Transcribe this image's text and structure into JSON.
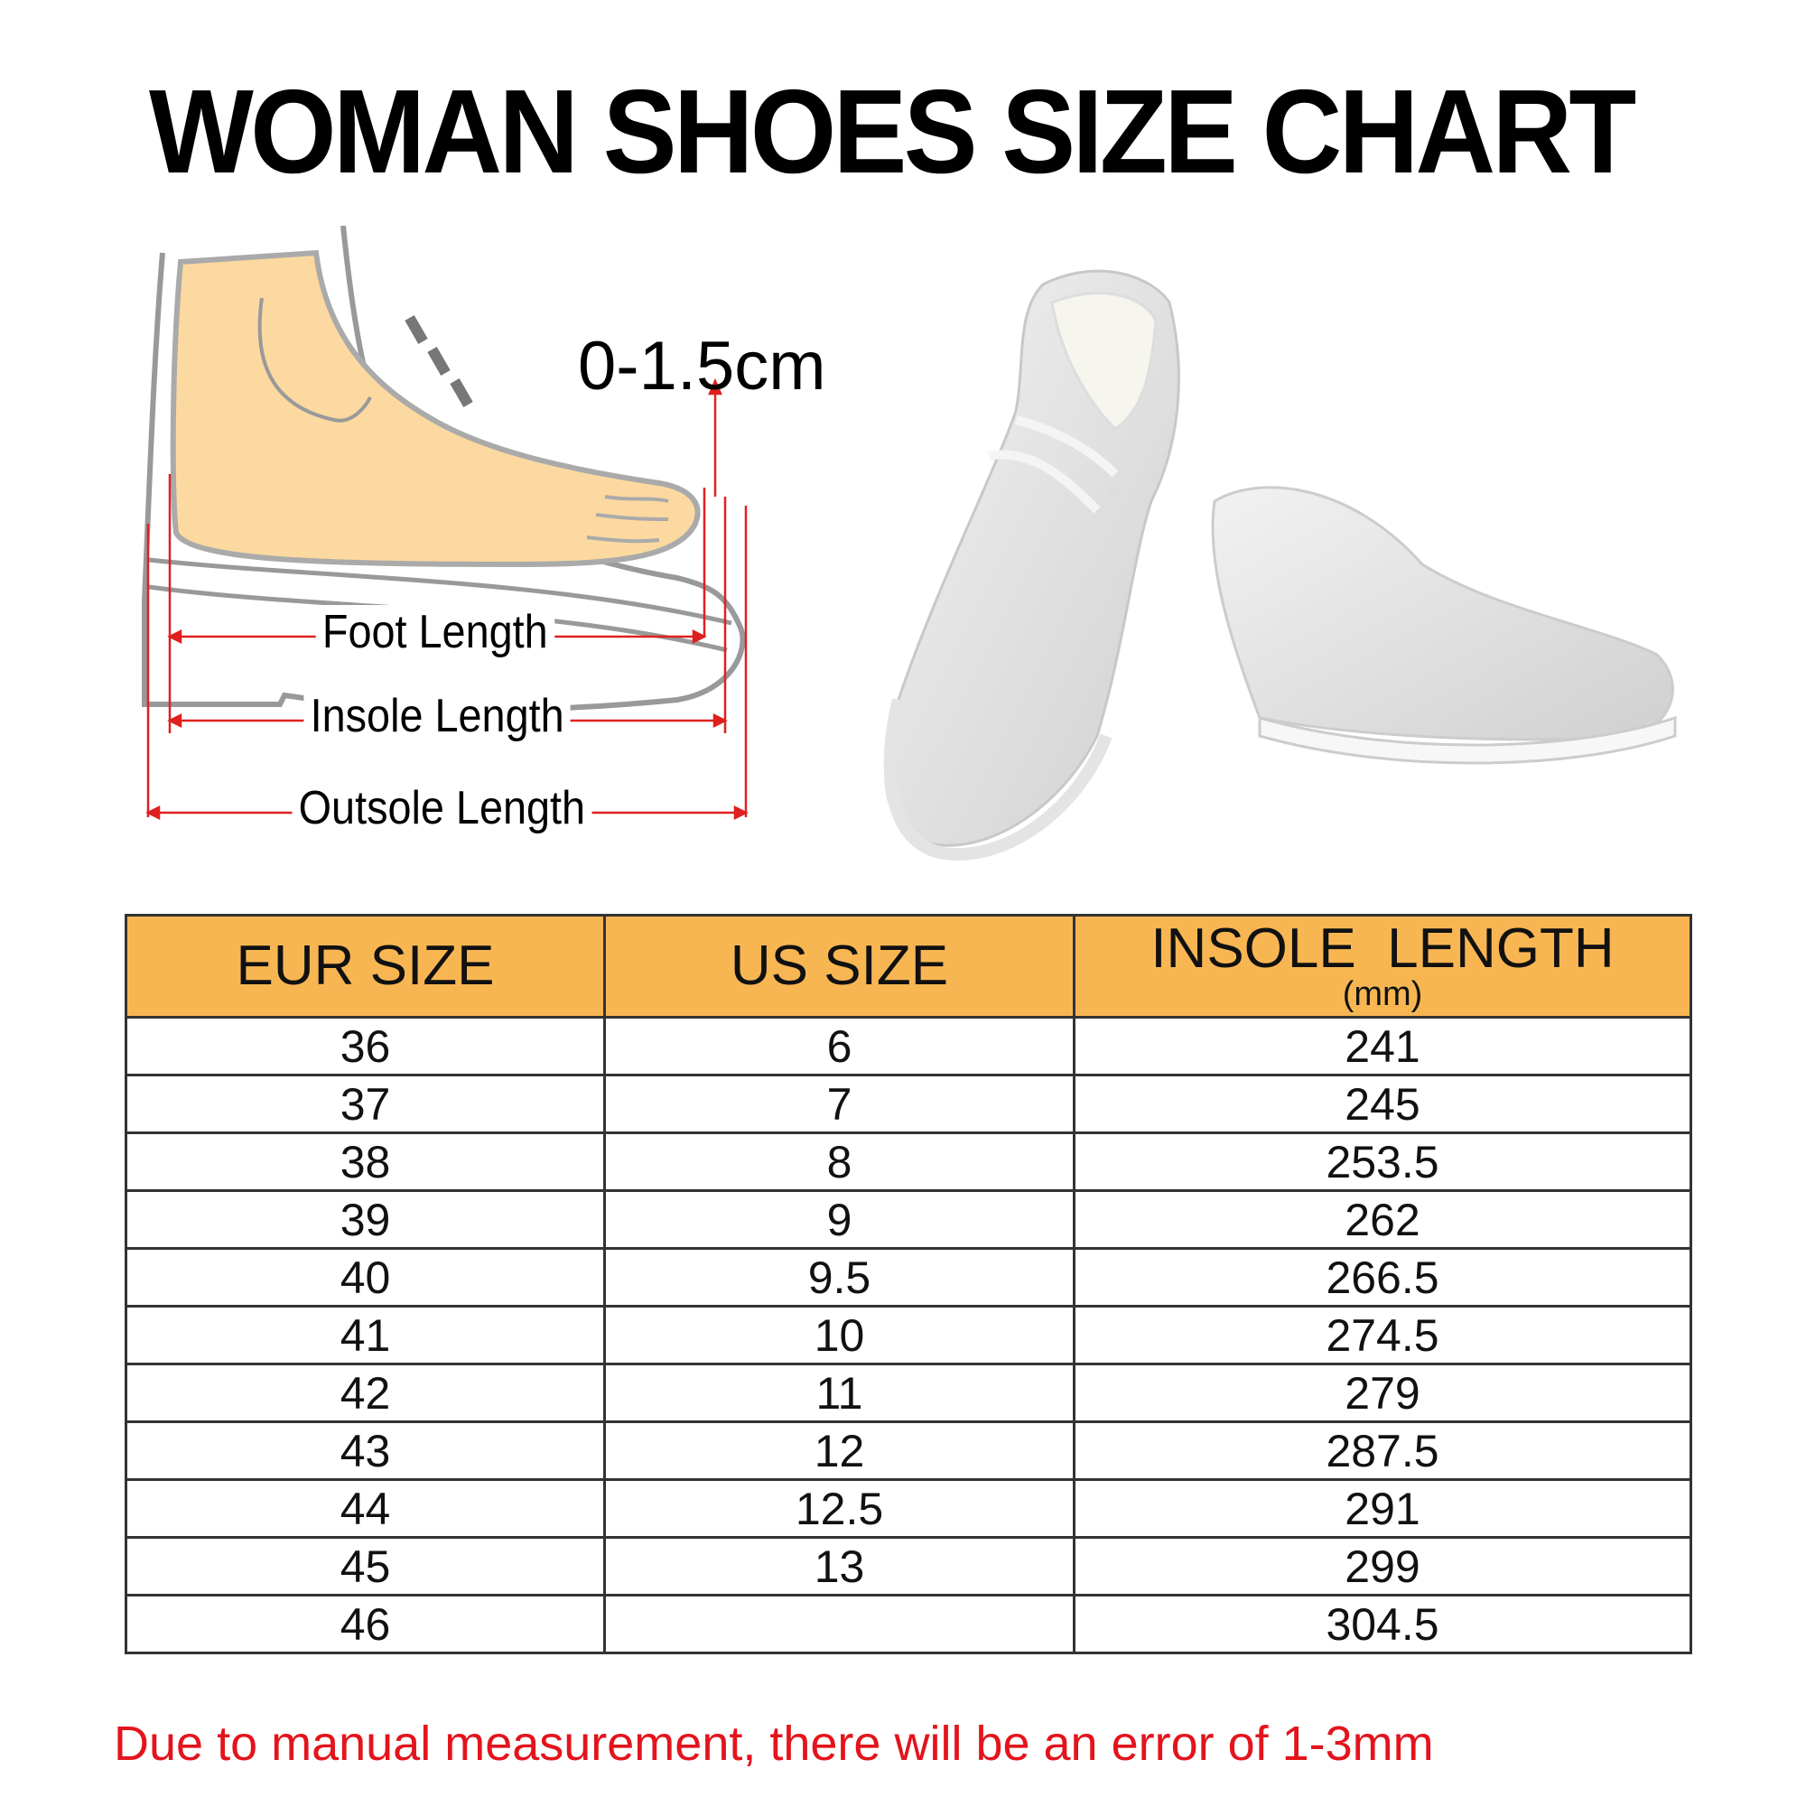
{
  "title": "WOMAN SHOES SIZE CHART",
  "diagram": {
    "toe_gap": "0-1.5cm",
    "foot_length": "Foot Length",
    "insole_length": "Insole Length",
    "outsole_length": "Outsole Length"
  },
  "colors": {
    "header_bg": "#f8b653",
    "note_text": "#e3141c",
    "measure_lines": "#e02020"
  },
  "table": {
    "headers": {
      "eur": "EUR SIZE",
      "us": "US SIZE",
      "insole": "INSOLE  LENGTH",
      "insole_unit": "(mm)"
    },
    "rows": [
      {
        "eur": "36",
        "us": "6",
        "insole": "241"
      },
      {
        "eur": "37",
        "us": "7",
        "insole": "245"
      },
      {
        "eur": "38",
        "us": "8",
        "insole": "253.5"
      },
      {
        "eur": "39",
        "us": "9",
        "insole": "262"
      },
      {
        "eur": "40",
        "us": "9.5",
        "insole": "266.5"
      },
      {
        "eur": "41",
        "us": "10",
        "insole": "274.5"
      },
      {
        "eur": "42",
        "us": "11",
        "insole": "279"
      },
      {
        "eur": "43",
        "us": "12",
        "insole": "287.5"
      },
      {
        "eur": "44",
        "us": "12.5",
        "insole": "291"
      },
      {
        "eur": "45",
        "us": "13",
        "insole": "299"
      },
      {
        "eur": "46",
        "us": "",
        "insole": "304.5"
      }
    ]
  },
  "note": "Due to manual measurement, there will be an error of 1-3mm"
}
